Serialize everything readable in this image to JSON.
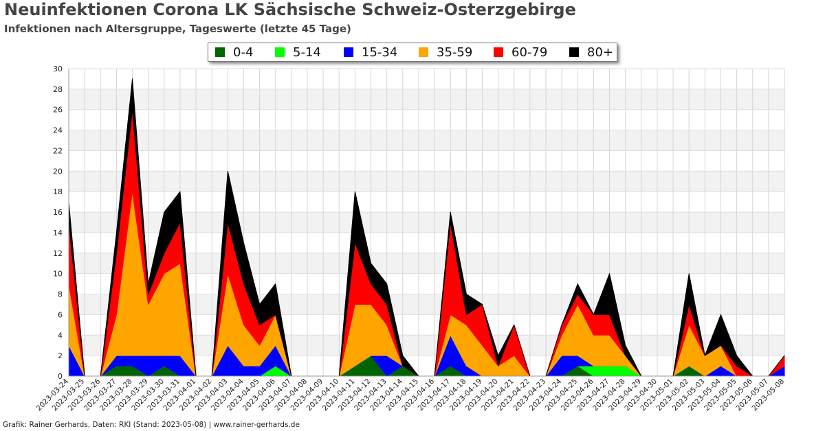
{
  "title": "Neuinfektionen Corona LK Sächsische Schweiz-Osterzgebirge",
  "subtitle": "Infektionen nach Altersgruppe, Tageswerte (letzte 45 Tage)",
  "footer": "Grafik: Rainer Gerhards, Daten: RKI (Stand: 2023-05-08) | www.rainer-gerhards.de",
  "chart_data": {
    "type": "area",
    "stacked": true,
    "ylim": [
      0,
      30
    ],
    "yticks": [
      0,
      2,
      4,
      6,
      8,
      10,
      12,
      14,
      16,
      18,
      20,
      22,
      24,
      26,
      28,
      30
    ],
    "grid": true,
    "legend_position": "top-center",
    "categories": [
      "2023-03-24",
      "2023-03-25",
      "2023-03-26",
      "2023-03-27",
      "2023-03-28",
      "2023-03-29",
      "2023-03-30",
      "2023-03-31",
      "2023-04-01",
      "2023-04-02",
      "2023-04-03",
      "2023-04-04",
      "2023-04-05",
      "2023-04-06",
      "2023-04-07",
      "2023-04-08",
      "2023-04-09",
      "2023-04-10",
      "2023-04-11",
      "2023-04-12",
      "2023-04-13",
      "2023-04-14",
      "2023-04-15",
      "2023-04-16",
      "2023-04-17",
      "2023-04-18",
      "2023-04-19",
      "2023-04-20",
      "2023-04-21",
      "2023-04-22",
      "2023-04-23",
      "2023-04-24",
      "2023-04-25",
      "2023-04-26",
      "2023-04-27",
      "2023-04-28",
      "2023-04-29",
      "2023-04-30",
      "2023-05-01",
      "2023-05-02",
      "2023-05-03",
      "2023-05-04",
      "2023-05-05",
      "2023-05-06",
      "2023-05-07",
      "2023-05-08"
    ],
    "points": [
      {
        "date": "2023-03-24",
        "v": [
          0,
          0,
          3,
          6,
          6,
          2
        ]
      },
      {
        "date": "2023-03-25",
        "v": [
          0,
          0,
          0,
          0,
          0,
          0
        ]
      },
      {
        "date": "2023-03-26",
        "v": [
          0,
          0,
          0,
          0,
          0,
          0
        ]
      },
      {
        "date": "2023-03-27",
        "v": [
          1,
          0,
          1,
          4,
          6,
          2
        ]
      },
      {
        "date": "2023-03-28",
        "v": [
          1,
          0,
          1,
          16,
          8,
          3
        ]
      },
      {
        "date": "2023-03-29",
        "v": [
          0,
          0,
          2,
          5,
          1,
          1
        ]
      },
      {
        "date": "2023-03-30",
        "v": [
          1,
          0,
          1,
          8,
          2,
          4
        ]
      },
      {
        "date": "2023-03-31",
        "v": [
          0,
          0,
          2,
          9,
          4,
          3
        ]
      },
      {
        "date": "2023-04-01",
        "v": [
          0,
          0,
          0,
          0,
          0,
          0
        ]
      },
      {
        "date": "2023-04-02",
        "v": [
          0,
          0,
          0,
          0,
          0,
          0
        ]
      },
      {
        "date": "2023-04-03",
        "v": [
          0,
          0,
          3,
          7,
          5,
          5
        ]
      },
      {
        "date": "2023-04-04",
        "v": [
          0,
          0,
          1,
          4,
          4,
          4
        ]
      },
      {
        "date": "2023-04-05",
        "v": [
          0,
          0,
          1,
          2,
          2,
          2
        ]
      },
      {
        "date": "2023-04-06",
        "v": [
          0,
          1,
          2,
          3,
          0,
          3
        ]
      },
      {
        "date": "2023-04-07",
        "v": [
          0,
          0,
          0,
          0,
          0,
          0
        ]
      },
      {
        "date": "2023-04-08",
        "v": [
          0,
          0,
          0,
          0,
          0,
          0
        ]
      },
      {
        "date": "2023-04-09",
        "v": [
          0,
          0,
          0,
          0,
          0,
          0
        ]
      },
      {
        "date": "2023-04-10",
        "v": [
          0,
          0,
          0,
          0,
          0,
          0
        ]
      },
      {
        "date": "2023-04-11",
        "v": [
          1,
          0,
          0,
          6,
          6,
          5
        ]
      },
      {
        "date": "2023-04-12",
        "v": [
          2,
          0,
          0,
          5,
          2,
          2
        ]
      },
      {
        "date": "2023-04-13",
        "v": [
          0,
          0,
          2,
          3,
          2,
          2
        ]
      },
      {
        "date": "2023-04-14",
        "v": [
          1,
          0,
          0,
          0,
          0,
          1
        ]
      },
      {
        "date": "2023-04-15",
        "v": [
          0,
          0,
          0,
          0,
          0,
          0
        ]
      },
      {
        "date": "2023-04-16",
        "v": [
          0,
          0,
          0,
          0,
          0,
          0
        ]
      },
      {
        "date": "2023-04-17",
        "v": [
          1,
          0,
          3,
          2,
          9,
          1
        ]
      },
      {
        "date": "2023-04-18",
        "v": [
          0,
          0,
          1,
          4,
          1,
          2
        ]
      },
      {
        "date": "2023-04-19",
        "v": [
          0,
          0,
          0,
          3,
          4,
          0
        ]
      },
      {
        "date": "2023-04-20",
        "v": [
          0,
          0,
          0,
          1,
          0,
          1
        ]
      },
      {
        "date": "2023-04-21",
        "v": [
          0,
          0,
          0,
          2,
          3,
          0
        ]
      },
      {
        "date": "2023-04-22",
        "v": [
          0,
          0,
          0,
          0,
          0,
          0
        ]
      },
      {
        "date": "2023-04-23",
        "v": [
          0,
          0,
          0,
          0,
          0,
          0
        ]
      },
      {
        "date": "2023-04-24",
        "v": [
          0,
          0,
          2,
          2,
          1,
          0
        ]
      },
      {
        "date": "2023-04-25",
        "v": [
          1,
          0,
          1,
          5,
          1,
          1
        ]
      },
      {
        "date": "2023-04-26",
        "v": [
          0,
          1,
          0,
          3,
          2,
          0
        ]
      },
      {
        "date": "2023-04-27",
        "v": [
          0,
          1,
          0,
          3,
          2,
          4
        ]
      },
      {
        "date": "2023-04-28",
        "v": [
          0,
          1,
          0,
          1,
          0,
          1
        ]
      },
      {
        "date": "2023-04-29",
        "v": [
          0,
          0,
          0,
          0,
          0,
          0
        ]
      },
      {
        "date": "2023-04-30",
        "v": [
          0,
          0,
          0,
          0,
          0,
          0
        ]
      },
      {
        "date": "2023-05-01",
        "v": [
          0,
          0,
          0,
          0,
          0,
          0
        ]
      },
      {
        "date": "2023-05-02",
        "v": [
          1,
          0,
          0,
          4,
          2,
          3
        ]
      },
      {
        "date": "2023-05-03",
        "v": [
          0,
          0,
          0,
          2,
          0,
          0
        ]
      },
      {
        "date": "2023-05-04",
        "v": [
          0,
          0,
          1,
          2,
          0,
          3
        ]
      },
      {
        "date": "2023-05-05",
        "v": [
          0,
          0,
          0,
          0,
          1,
          1
        ]
      },
      {
        "date": "2023-05-06",
        "v": [
          0,
          0,
          0,
          0,
          0,
          0
        ]
      },
      {
        "date": "2023-05-07",
        "v": [
          0,
          0,
          0,
          0,
          0,
          0
        ]
      },
      {
        "date": "2023-05-08",
        "v": [
          0,
          0,
          1,
          0,
          1,
          0
        ]
      }
    ],
    "series": [
      {
        "name": "0-4",
        "color": "#006400"
      },
      {
        "name": "5-14",
        "color": "#00ff00"
      },
      {
        "name": "15-34",
        "color": "#0000ff"
      },
      {
        "name": "35-59",
        "color": "#ffa500"
      },
      {
        "name": "60-79",
        "color": "#ff0000"
      },
      {
        "name": "80+",
        "color": "#000000"
      }
    ]
  }
}
